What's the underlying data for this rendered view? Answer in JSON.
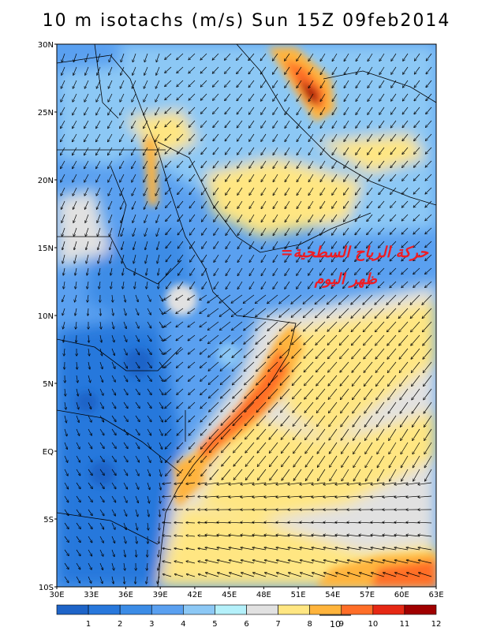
{
  "title": "10 m isotachs (m/s) Sun 15Z 09feb2014",
  "annotation": {
    "line1": "=حركة الرياح السطحية",
    "line2": "ظهر اليوم"
  },
  "axes": {
    "lon_labels": [
      "30E",
      "33E",
      "36E",
      "39E",
      "42E",
      "45E",
      "48E",
      "51E",
      "54E",
      "57E",
      "60E",
      "63E"
    ],
    "lat_labels": [
      "30N",
      "25N",
      "20N",
      "15N",
      "10N",
      "5N",
      "EQ",
      "5S",
      "10S"
    ]
  },
  "colorbar": {
    "labels": [
      "1",
      "2",
      "3",
      "4",
      "5",
      "6",
      "7",
      "8",
      "9",
      "10",
      "11",
      "12"
    ],
    "colors": [
      "#1e64c8",
      "#2878dc",
      "#3c8ce6",
      "#5aa0f0",
      "#8cc8f5",
      "#b4f0fa",
      "#e1e1e1",
      "#ffe682",
      "#ffb43c",
      "#ff6e28",
      "#e62814",
      "#a00000"
    ],
    "reference_vector_label": "10"
  }
}
